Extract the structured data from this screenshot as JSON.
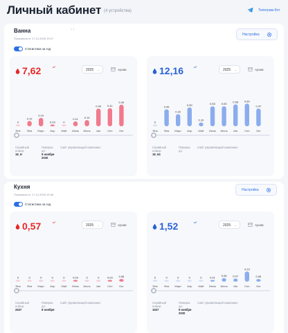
{
  "header": {
    "title": "Личный кабинет",
    "subtitle": "(4 устройства)",
    "telegram_label": "Телеграм-бот"
  },
  "devices": [
    {
      "name": "Ванна",
      "reading_note": "Показания от 17.12.2025 19:27",
      "menu_dots": "··",
      "settings_label": "Настройка",
      "stats_label": "Статистика за год",
      "meters": [
        {
          "color": "red",
          "value": "7,62",
          "unit": "м³",
          "year": "2025",
          "archive_label": "Архив",
          "serial_label": "Серийный номер:",
          "serial_value": "18_9-",
          "verify_label": "Поверка до:",
          "verify_value": "9 ноября 2030",
          "company_label": "Сайт управляющей компании:",
          "chart_data": {
            "type": "bar",
            "categories": [
              "Янв",
              "Фев",
              "Март",
              "Апр",
              "Май",
              "Июнь",
              "Июль",
              "Авг",
              "Сен",
              "Окт"
            ],
            "values": [
              0,
              0.12,
              0.19,
              0.03,
              0,
              0.11,
              0.14,
              0.4,
              0.41,
              0.49
            ],
            "labels": [
              "0",
              "0.12",
              "0.19",
              "0.03",
              "0",
              "0.11",
              "0.14",
              "0.40",
              "0.41",
              "0.49"
            ],
            "ylim": [
              0,
              0.6
            ],
            "color": "#f06b80"
          }
        },
        {
          "color": "blue",
          "value": "12,16",
          "unit": "м³",
          "year": "2025",
          "archive_label": "Архив",
          "serial_label": "Серийный номер:",
          "serial_value": "18_94",
          "verify_label": "Поверка до:",
          "verify_value": "",
          "company_label": "Сайт управляющей компании:",
          "chart_data": {
            "type": "bar",
            "categories": [
              "Янв",
              "Фев",
              "Март",
              "Апр",
              "Май",
              "Июнь",
              "Июль",
              "Авг",
              "Сен",
              "Окт"
            ],
            "values": [
              0,
              0.45,
              0.32,
              0.5,
              0.1,
              0.53,
              0.53,
              0.58,
              0.6,
              0.47
            ],
            "labels": [
              "0",
              "0.45",
              "0.32",
              "0.50",
              "0.10",
              "0.53",
              "0.53",
              "0.58",
              "0.60",
              "0.47"
            ],
            "ylim": [
              0,
              0.7
            ],
            "color": "#7ea4ec"
          }
        }
      ]
    },
    {
      "name": "Кухня",
      "reading_note": "Показания от 17.12.2025 19:46",
      "settings_label": "Настройка",
      "stats_label": "Статистика за год",
      "meters": [
        {
          "color": "red",
          "value": "0,57",
          "unit": "м³",
          "year": "2025",
          "archive_label": "Архив",
          "serial_label": "Серийный номер:",
          "serial_value": "2637",
          "verify_label": "Поверка до:",
          "verify_value": "9 ноября",
          "company_label": "Сайт управляющей компании:",
          "chart_data": {
            "type": "bar",
            "categories": [
              "Янв",
              "Фев",
              "Март",
              "Апр",
              "Май",
              "Июнь",
              "Июль",
              "Авг",
              "Сен",
              "Окт"
            ],
            "values": [
              0,
              0,
              0,
              0,
              0,
              0.03,
              0,
              0,
              0.03,
              0.06
            ],
            "labels": [
              "0",
              "0",
              "0",
              "0",
              "0",
              "0.03",
              "0",
              "0",
              "0.03",
              "0.06"
            ],
            "ylim": [
              0,
              0.6
            ],
            "color": "#f06b80"
          }
        },
        {
          "color": "blue",
          "value": "1,52",
          "unit": "м³",
          "year": "2025",
          "archive_label": "Архив",
          "serial_label": "Серийный номер:",
          "serial_value": "1537",
          "verify_label": "Поверка до:",
          "verify_value": "9 ноября 2030",
          "company_label": "Сайт управляющей компании:",
          "chart_data": {
            "type": "bar",
            "categories": [
              "Янв",
              "Фев",
              "Март",
              "Апр",
              "Май",
              "Июнь",
              "Июль",
              "Авг",
              "Сен",
              "Окт"
            ],
            "values": [
              0,
              0,
              0,
              0,
              0,
              0.01,
              0.08,
              0.07,
              0.23,
              0.06
            ],
            "labels": [
              "0",
              "0",
              "0",
              "0",
              "0",
              "0.01",
              "0.08",
              "0.07",
              "0.23",
              "0.06"
            ],
            "ylim": [
              0,
              0.6
            ],
            "color": "#7ea4ec"
          }
        }
      ]
    }
  ]
}
